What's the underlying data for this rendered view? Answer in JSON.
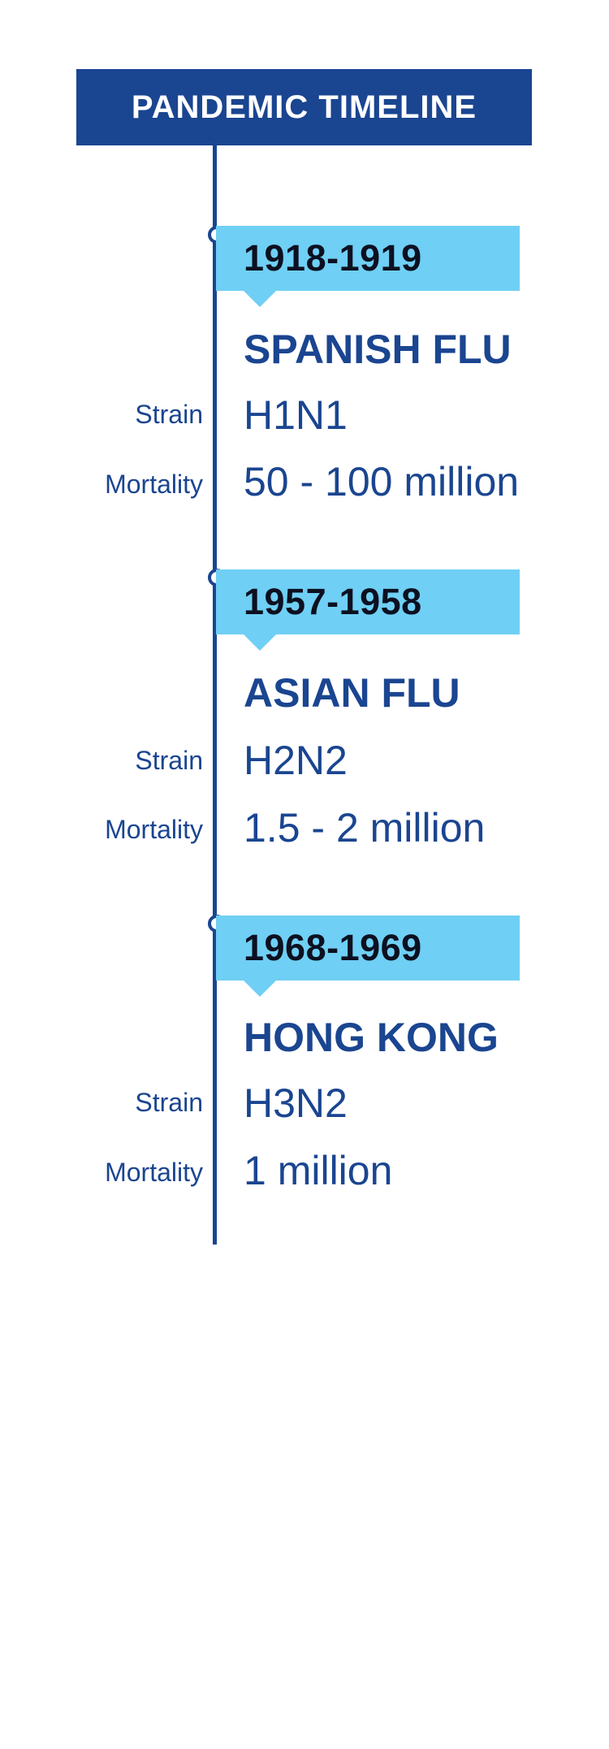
{
  "title": "PANDEMIC TIMELINE",
  "colors": {
    "header_bg": "#1a4590",
    "header_text": "#ffffff",
    "accent_blue": "#1a4590",
    "year_box": "#6fcff4",
    "year_text": "#0c1020"
  },
  "field_labels": {
    "strain": "Strain",
    "mortality": "Mortality"
  },
  "events": [
    {
      "years": "1918-1919",
      "name": "SPANISH FLU",
      "strain": "H1N1",
      "mortality": "50 - 100 million"
    },
    {
      "years": "1957-1958",
      "name": "ASIAN FLU",
      "strain": "H2N2",
      "mortality": "1.5 - 2 million"
    },
    {
      "years": "1968-1969",
      "name": "HONG KONG",
      "strain": "H3N2",
      "mortality": "1 million"
    }
  ]
}
